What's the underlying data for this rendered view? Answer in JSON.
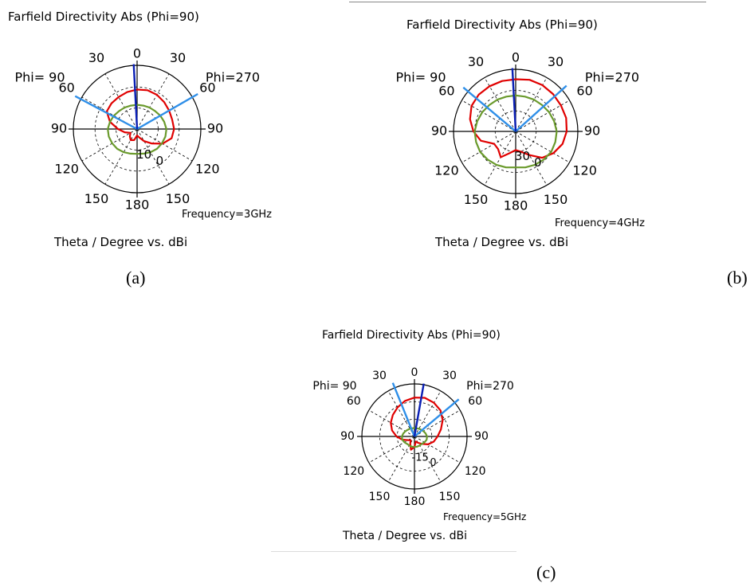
{
  "chart_data": [
    {
      "type": "polar",
      "id": "a",
      "title": "Farfield Directivity Abs (Phi=90)",
      "left_label": "Phi= 90",
      "right_label": "Phi=270",
      "angle_labels_left": [
        "30",
        "60",
        "90",
        "120",
        "150"
      ],
      "angle_labels_right": [
        "30",
        "60",
        "90",
        "120",
        "150"
      ],
      "top_label": "0",
      "bottom_label": "180",
      "radial_tick_labels": [
        "10",
        "0"
      ],
      "frequency": "Frequency=3GHz",
      "xlabel": "Theta / Degree vs. dBi",
      "caption": "(a)",
      "main_lobe_direction_deg": -3,
      "beamwidth_lines_deg": [
        -62,
        60
      ],
      "series": [
        {
          "color": "#e00000",
          "r": [
            0.62,
            0.63,
            0.62,
            0.6,
            0.58,
            0.57,
            0.58,
            0.56,
            0.46,
            0.32,
            0.22,
            0.14,
            0.1,
            0.18,
            0.2,
            0.16,
            0.12,
            0.2,
            0.3,
            0.44,
            0.55,
            0.57,
            0.58,
            0.6,
            0.62
          ]
        },
        {
          "color": "#6a9a2c",
          "r": [
            0.38,
            0.38,
            0.39,
            0.4,
            0.42,
            0.44,
            0.46,
            0.46,
            0.45,
            0.44,
            0.42,
            0.4,
            0.39,
            0.4,
            0.42,
            0.44,
            0.45,
            0.46,
            0.46,
            0.44,
            0.42,
            0.4,
            0.39,
            0.38,
            0.38
          ]
        }
      ]
    },
    {
      "type": "polar",
      "id": "b",
      "title": "Farfield Directivity Abs (Phi=90)",
      "left_label": "Phi= 90",
      "right_label": "Phi=270",
      "angle_labels_left": [
        "30",
        "60",
        "90",
        "120",
        "150"
      ],
      "angle_labels_right": [
        "30",
        "60",
        "90",
        "120",
        "150"
      ],
      "top_label": "0",
      "bottom_label": "180",
      "radial_tick_labels": [
        "30",
        "0"
      ],
      "frequency": "Frequency=4GHz",
      "xlabel": "Theta / Degree vs. dBi",
      "caption": "(b)",
      "main_lobe_direction_deg": -3,
      "beamwidth_lines_deg": [
        -50,
        48
      ],
      "series": [
        {
          "color": "#e00000",
          "r": [
            0.84,
            0.86,
            0.86,
            0.85,
            0.84,
            0.84,
            0.82,
            0.78,
            0.7,
            0.6,
            0.44,
            0.34,
            0.3,
            0.36,
            0.48,
            0.4,
            0.4,
            0.58,
            0.68,
            0.76,
            0.82,
            0.84,
            0.84,
            0.84,
            0.84
          ]
        },
        {
          "color": "#6a9a2c",
          "r": [
            0.58,
            0.58,
            0.59,
            0.6,
            0.62,
            0.64,
            0.66,
            0.66,
            0.66,
            0.64,
            0.62,
            0.6,
            0.58,
            0.6,
            0.62,
            0.64,
            0.66,
            0.66,
            0.66,
            0.64,
            0.62,
            0.6,
            0.59,
            0.58,
            0.58
          ]
        }
      ]
    },
    {
      "type": "polar",
      "id": "c",
      "title": "Farfield Directivity Abs (Phi=90)",
      "left_label": "Phi= 90",
      "right_label": "Phi=270",
      "angle_labels_left": [
        "30",
        "60",
        "90",
        "120",
        "150"
      ],
      "angle_labels_right": [
        "30",
        "60",
        "90",
        "120",
        "150"
      ],
      "top_label": "0",
      "bottom_label": "180",
      "radial_tick_labels": [
        "-15",
        "0"
      ],
      "frequency": "Frequency=5GHz",
      "xlabel": "Theta / Degree vs. dBi",
      "caption": "(c)",
      "main_lobe_direction_deg": 10,
      "beamwidth_lines_deg": [
        -22,
        50
      ],
      "series": [
        {
          "color": "#e00000",
          "r": [
            0.74,
            0.76,
            0.74,
            0.7,
            0.62,
            0.52,
            0.44,
            0.38,
            0.3,
            0.2,
            0.14,
            0.1,
            0.2,
            0.26,
            0.16,
            0.1,
            0.14,
            0.24,
            0.34,
            0.44,
            0.52,
            0.58,
            0.64,
            0.7,
            0.74
          ]
        },
        {
          "color": "#6a9a2c",
          "r": [
            0.16,
            0.16,
            0.17,
            0.18,
            0.2,
            0.22,
            0.24,
            0.24,
            0.22,
            0.2,
            0.2,
            0.2,
            0.2,
            0.2,
            0.2,
            0.2,
            0.22,
            0.24,
            0.24,
            0.22,
            0.2,
            0.18,
            0.17,
            0.16,
            0.16
          ]
        }
      ]
    }
  ]
}
